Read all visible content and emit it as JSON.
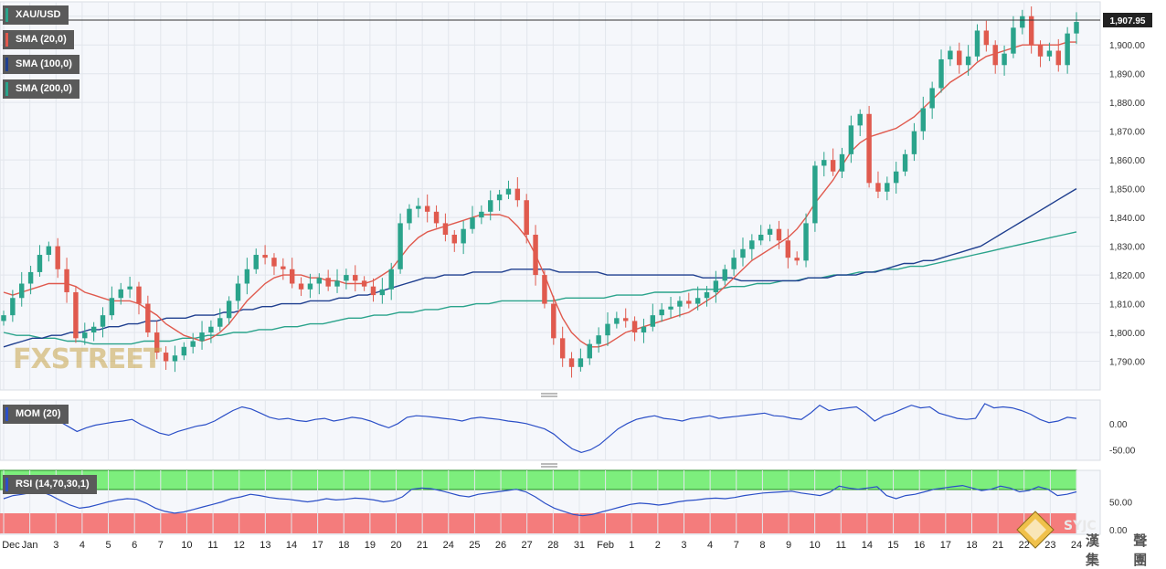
{
  "chart_data": [
    {
      "type": "candlestick",
      "title": "XAU/USD",
      "last_price_label": "1,907.95",
      "last_price": 1907.95,
      "ylim": [
        1780,
        1915
      ],
      "y_ticks": [
        "1,790.00",
        "1,800.00",
        "1,810.00",
        "1,820.00",
        "1,830.00",
        "1,840.00",
        "1,850.00",
        "1,860.00",
        "1,870.00",
        "1,880.00",
        "1,890.00",
        "1,900.00",
        "1,910.00"
      ],
      "x_ticks": [
        "Dec",
        "Jan",
        "3",
        "4",
        "5",
        "6",
        "7",
        "10",
        "11",
        "12",
        "13",
        "14",
        "17",
        "18",
        "19",
        "20",
        "21",
        "24",
        "25",
        "26",
        "27",
        "28",
        "31",
        "Feb",
        "1",
        "2",
        "3",
        "4",
        "7",
        "8",
        "9",
        "10",
        "11",
        "14",
        "15",
        "16",
        "17",
        "18",
        "21",
        "22",
        "23",
        "24"
      ],
      "close": [
        1806,
        1812,
        1817,
        1821,
        1827,
        1830,
        1822,
        1814,
        1798,
        1800,
        1802,
        1806,
        1812,
        1815,
        1816,
        1810,
        1800,
        1793,
        1790,
        1792,
        1795,
        1797,
        1800,
        1802,
        1805,
        1811,
        1817,
        1822,
        1827,
        1826,
        1823,
        1822,
        1817,
        1815,
        1817,
        1819,
        1816,
        1818,
        1820,
        1818,
        1816,
        1813,
        1815,
        1822,
        1838,
        1843,
        1844,
        1842,
        1838,
        1834,
        1831,
        1836,
        1840,
        1842,
        1846,
        1848,
        1850,
        1846,
        1834,
        1820,
        1810,
        1798,
        1791,
        1788,
        1791,
        1796,
        1799,
        1803,
        1805,
        1804,
        1800,
        1802,
        1806,
        1808,
        1809,
        1811,
        1810,
        1812,
        1814,
        1818,
        1822,
        1826,
        1829,
        1832,
        1834,
        1836,
        1832,
        1826,
        1825,
        1838,
        1858,
        1860,
        1856,
        1862,
        1872,
        1876,
        1852,
        1849,
        1852,
        1856,
        1862,
        1870,
        1878,
        1885,
        1895,
        1898,
        1893,
        1896,
        1905,
        1900,
        1893,
        1897,
        1906,
        1910,
        1900,
        1896,
        1898,
        1893,
        1904,
        1908
      ],
      "indicators": [
        {
          "label": "SMA (20,0)",
          "color": "#e05a4e"
        },
        {
          "label": "SMA (100,0)",
          "color": "#1f3f8f"
        },
        {
          "label": "SMA (200,0)",
          "color": "#2aa38b"
        }
      ],
      "sma20": [
        1814,
        1813,
        1814,
        1815,
        1816,
        1817,
        1817,
        1817,
        1816,
        1814,
        1813,
        1812,
        1811,
        1811,
        1811,
        1810,
        1808,
        1806,
        1803,
        1801,
        1799,
        1798,
        1797,
        1798,
        1800,
        1803,
        1807,
        1811,
        1814,
        1817,
        1819,
        1820,
        1820,
        1820,
        1819,
        1819,
        1818,
        1818,
        1817,
        1817,
        1817,
        1818,
        1820,
        1822,
        1826,
        1830,
        1833,
        1835,
        1836,
        1837,
        1838,
        1839,
        1840,
        1841,
        1841,
        1841,
        1840,
        1837,
        1833,
        1827,
        1820,
        1812,
        1805,
        1800,
        1797,
        1795,
        1795,
        1796,
        1798,
        1800,
        1801,
        1802,
        1803,
        1804,
        1805,
        1806,
        1807,
        1809,
        1811,
        1813,
        1816,
        1819,
        1822,
        1825,
        1827,
        1829,
        1831,
        1833,
        1836,
        1840,
        1845,
        1849,
        1853,
        1858,
        1863,
        1866,
        1868,
        1869,
        1870,
        1871,
        1873,
        1875,
        1878,
        1881,
        1884,
        1887,
        1889,
        1891,
        1894,
        1896,
        1897,
        1898,
        1899,
        1900,
        1900,
        1900,
        1900,
        1900,
        1901,
        1901
      ],
      "sma100": [
        1795,
        1796,
        1797,
        1798,
        1798,
        1799,
        1799,
        1800,
        1800,
        1801,
        1801,
        1802,
        1802,
        1803,
        1803,
        1804,
        1804,
        1805,
        1805,
        1805,
        1806,
        1806,
        1806,
        1807,
        1807,
        1808,
        1808,
        1809,
        1809,
        1810,
        1810,
        1810,
        1811,
        1811,
        1811,
        1812,
        1812,
        1813,
        1813,
        1814,
        1815,
        1816,
        1817,
        1818,
        1819,
        1819,
        1820,
        1820,
        1820,
        1821,
        1821,
        1821,
        1821,
        1822,
        1822,
        1822,
        1822,
        1822,
        1821,
        1821,
        1821,
        1821,
        1821,
        1820,
        1820,
        1820,
        1820,
        1820,
        1820,
        1820,
        1820,
        1820,
        1820,
        1819,
        1819,
        1819,
        1819,
        1818,
        1818,
        1818,
        1818,
        1818,
        1818,
        1818,
        1819,
        1819,
        1819,
        1820,
        1820,
        1820,
        1821,
        1821,
        1822,
        1823,
        1824,
        1824,
        1825,
        1825,
        1826,
        1827,
        1828,
        1829,
        1830,
        1832,
        1834,
        1836,
        1838,
        1840,
        1842,
        1844,
        1846,
        1848,
        1850
      ],
      "sma200": [
        1800,
        1799,
        1799,
        1798,
        1798,
        1797,
        1797,
        1796,
        1796,
        1796,
        1796,
        1797,
        1797,
        1797,
        1798,
        1798,
        1799,
        1799,
        1800,
        1800,
        1801,
        1801,
        1802,
        1802,
        1803,
        1803,
        1804,
        1805,
        1805,
        1806,
        1806,
        1807,
        1807,
        1808,
        1808,
        1809,
        1809,
        1810,
        1810,
        1811,
        1811,
        1811,
        1811,
        1811,
        1812,
        1812,
        1812,
        1812,
        1813,
        1813,
        1813,
        1814,
        1814,
        1814,
        1815,
        1815,
        1815,
        1816,
        1816,
        1817,
        1817,
        1818,
        1818,
        1819,
        1819,
        1820,
        1820,
        1821,
        1821,
        1822,
        1822,
        1823,
        1823,
        1824,
        1825,
        1826,
        1827,
        1828,
        1829,
        1830,
        1831,
        1832,
        1833,
        1834,
        1835
      ]
    },
    {
      "type": "line",
      "title": "MOM (20)",
      "color": "#2b4fc7",
      "ylim": [
        -70,
        45
      ],
      "y_ticks": [
        "0.00",
        "-50.00"
      ],
      "values": [
        5,
        10,
        8,
        4,
        2,
        8,
        5,
        -5,
        -15,
        -8,
        -3,
        0,
        3,
        5,
        8,
        -2,
        -10,
        -18,
        -22,
        -15,
        -10,
        -5,
        -2,
        5,
        15,
        25,
        32,
        28,
        20,
        12,
        8,
        10,
        6,
        4,
        8,
        10,
        5,
        8,
        12,
        10,
        5,
        -2,
        -8,
        0,
        12,
        15,
        14,
        12,
        10,
        8,
        5,
        10,
        12,
        10,
        8,
        5,
        3,
        0,
        -5,
        -10,
        -20,
        -35,
        -48,
        -55,
        -50,
        -40,
        -25,
        -10,
        0,
        8,
        12,
        15,
        10,
        8,
        5,
        10,
        12,
        15,
        10,
        12,
        14,
        16,
        18,
        20,
        15,
        14,
        10,
        8,
        20,
        35,
        25,
        28,
        30,
        32,
        20,
        5,
        15,
        20,
        28,
        35,
        30,
        32,
        20,
        15,
        10,
        8,
        10,
        38,
        30,
        32,
        30,
        25,
        18,
        8,
        2,
        5,
        12,
        10
      ]
    },
    {
      "type": "line",
      "title": "RSI (14,70,30,1)",
      "color": "#2b4fc7",
      "ylim": [
        0,
        100
      ],
      "bands": {
        "overbought": 70,
        "oversold": 30
      },
      "y_ticks": [
        "50.00",
        "0.00"
      ],
      "values": [
        55,
        60,
        62,
        65,
        66,
        60,
        52,
        45,
        40,
        42,
        46,
        50,
        53,
        55,
        54,
        48,
        40,
        35,
        32,
        34,
        38,
        42,
        46,
        50,
        55,
        58,
        62,
        60,
        57,
        55,
        54,
        52,
        50,
        52,
        55,
        53,
        54,
        56,
        55,
        53,
        50,
        52,
        58,
        70,
        72,
        71,
        68,
        64,
        60,
        58,
        62,
        64,
        66,
        68,
        70,
        66,
        58,
        48,
        40,
        35,
        30,
        28,
        30,
        34,
        38,
        42,
        46,
        48,
        47,
        45,
        47,
        50,
        52,
        53,
        55,
        56,
        55,
        57,
        60,
        62,
        64,
        65,
        66,
        67,
        64,
        62,
        60,
        65,
        75,
        72,
        70,
        72,
        74,
        60,
        55,
        60,
        62,
        66,
        70,
        72,
        74,
        76,
        72,
        68,
        70,
        75,
        72,
        66,
        68,
        74,
        70,
        60,
        62,
        66
      ]
    }
  ],
  "brand": {
    "watermark": "FXSTREET",
    "logo_text": "SYJC",
    "cn_text": "漢 聲 集 團"
  }
}
